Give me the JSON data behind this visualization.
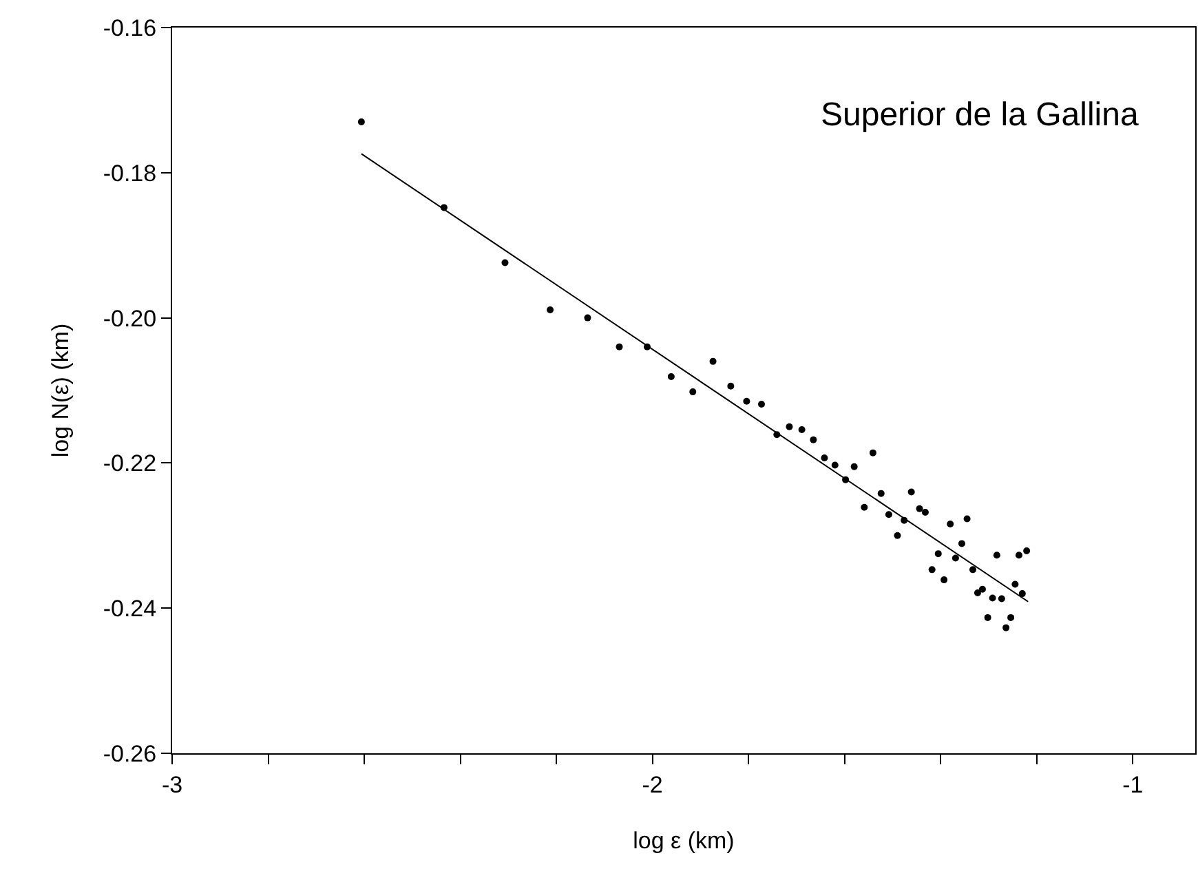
{
  "chart_data": {
    "type": "scatter",
    "xlabel": "log ε (km)",
    "ylabel": "log N(ε) (km)",
    "annotations": [
      "Superior de la Gallina"
    ],
    "xlim": [
      -3,
      -0.87
    ],
    "xticks": [
      -3,
      {
        "value": -2.8,
        "label": null
      },
      {
        "value": -2.6,
        "label": null
      },
      {
        "value": -2.4,
        "label": null
      },
      {
        "value": -2.2,
        "label": null
      },
      -2,
      {
        "value": -1.8,
        "label": null
      },
      {
        "value": -1.6,
        "label": null
      },
      {
        "value": -1.4,
        "label": null
      },
      {
        "value": -1.2,
        "label": null
      },
      -1
    ],
    "ylim": [
      -0.26,
      -0.16
    ],
    "yticks": [
      {
        "value": -0.26,
        "label": "-0.26"
      },
      {
        "value": -0.24,
        "label": "-0.24"
      },
      {
        "value": -0.22,
        "label": "-0.22"
      },
      {
        "value": -0.2,
        "label": "-0.20"
      },
      {
        "value": -0.18,
        "label": "-0.18"
      },
      {
        "value": -0.16,
        "label": "-0.16"
      }
    ],
    "series": [
      {
        "color": "#000000",
        "marker": "circle",
        "x": [
          -2.606,
          -2.434,
          -2.307,
          -2.213,
          -2.135,
          -2.069,
          -2.011,
          -1.961,
          -1.916,
          -1.874,
          -1.837,
          -1.804,
          -1.773,
          -1.741,
          -1.715,
          -1.689,
          -1.665,
          -1.642,
          -1.62,
          -1.598,
          -1.58,
          -1.541,
          -1.559,
          -1.524,
          -1.508,
          -1.49,
          -1.476,
          -1.461,
          -1.444,
          -1.432,
          -1.418,
          -1.405,
          -1.393,
          -1.38,
          -1.369,
          -1.356,
          -1.345,
          -1.333,
          -1.323,
          -1.313,
          -1.302,
          -1.292,
          -1.283,
          -1.273,
          -1.264,
          -1.254,
          -1.245,
          -1.237,
          -1.23,
          -1.221
        ],
        "values": [
          -0.173,
          -0.1848,
          -0.1924,
          -0.1989,
          -0.2,
          -0.204,
          -0.204,
          -0.2081,
          -0.2102,
          -0.206,
          -0.2094,
          -0.2115,
          -0.2119,
          -0.2161,
          -0.215,
          -0.2154,
          -0.2168,
          -0.2193,
          -0.2203,
          -0.2223,
          -0.2205,
          -0.2186,
          -0.2261,
          -0.2242,
          -0.2271,
          -0.23,
          -0.2279,
          -0.224,
          -0.2263,
          -0.2268,
          -0.2347,
          -0.2325,
          -0.2361,
          -0.2284,
          -0.2331,
          -0.2311,
          -0.2277,
          -0.2347,
          -0.2379,
          -0.2374,
          -0.2413,
          -0.2386,
          -0.2327,
          -0.2387,
          -0.2427,
          -0.2413,
          -0.2367,
          -0.2327,
          -0.238,
          -0.2321
        ]
      },
      {
        "type": "line",
        "color": "#000000",
        "marker": "none",
        "x": [
          -2.606,
          -1.218
        ],
        "values": [
          -0.1774,
          -0.2391
        ]
      }
    ]
  }
}
